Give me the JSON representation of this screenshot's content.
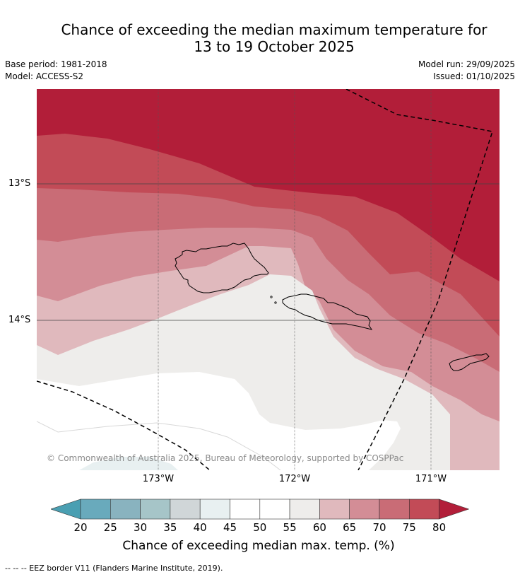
{
  "title": {
    "line1": "Chance of exceeding the median maximum temperature for",
    "line2": "13 to 19 October 2025"
  },
  "meta": {
    "base_period": "Base period: 1981-2018",
    "model": "Model: ACCESS-S2",
    "model_run": "Model run: 29/09/2025",
    "issued": "Issued: 01/10/2025"
  },
  "map": {
    "latitude_labels": [
      "13°S",
      "14°S"
    ],
    "longitude_labels": [
      "173°W",
      "172°W",
      "171°W"
    ],
    "copyright": "© Commonwealth of Australia 2025, Bureau of Meteorology, supported by COSPPac",
    "region_colors": {
      "above80": "#b21e39",
      "c75_80": "#c24b57",
      "c70_75": "#c96c76",
      "c65_70": "#d38d96",
      "c60_65": "#e0b9bd",
      "c55_60": "#eeedeb",
      "c45_55": "#ffffff",
      "c40_45": "#e8f0f1",
      "land_outline": "#000000"
    }
  },
  "colorbar": {
    "ticks": [
      "20",
      "25",
      "30",
      "35",
      "40",
      "45",
      "50",
      "55",
      "60",
      "65",
      "70",
      "75",
      "80"
    ],
    "colors": [
      "#69aabc",
      "#89b3bf",
      "#a6c5c8",
      "#d0d6d8",
      "#e8f0f1",
      "#ffffff",
      "#ffffff",
      "#eeedeb",
      "#e0b9bd",
      "#d38d96",
      "#c96c76",
      "#c24b57"
    ],
    "low_color": "#4a9fb2",
    "high_color": "#b21e39",
    "label": "Chance of exceeding median max. temp. (%)"
  },
  "legend_note": "--  --  -- EEZ border V11 (Flanders Marine Institute, 2019)."
}
